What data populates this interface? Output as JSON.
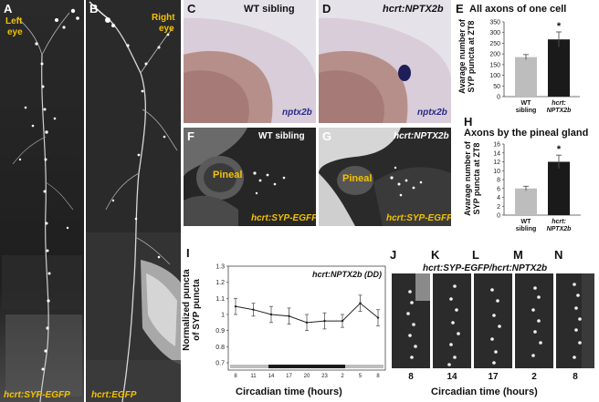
{
  "panels": {
    "A": {
      "letter": "A",
      "top_label": "Left",
      "top_label2": "eye",
      "bottom_label": "hcrt:SYP-EGFP"
    },
    "B": {
      "letter": "B",
      "top_label": "Right",
      "top_label2": "eye",
      "bottom_label": "hcrt:EGFP"
    },
    "C": {
      "letter": "C",
      "title": "WT sibling",
      "probe": "nptx2b"
    },
    "D": {
      "letter": "D",
      "title": "hcrt:NPTX2b",
      "probe": "nptx2b"
    },
    "F": {
      "letter": "F",
      "title": "WT sibling",
      "region": "Pineal",
      "bottom_label": "hcrt:SYP-EGFP"
    },
    "G": {
      "letter": "G",
      "title": "hcrt:NPTX2b",
      "region": "Pineal",
      "bottom_label": "hcrt:SYP-EGFP"
    },
    "J": {
      "letter": "J"
    },
    "K": {
      "letter": "K"
    },
    "L": {
      "letter": "L"
    },
    "M": {
      "letter": "M"
    },
    "N": {
      "letter": "N"
    },
    "JN": {
      "title": "hcrt:SYP-EGFP/hcrt:NPTX2b",
      "timepoints": [
        "8",
        "14",
        "17",
        "2",
        "8"
      ],
      "xlabel": "Circadian time (hours)"
    }
  },
  "chart_data": [
    {
      "panel": "E",
      "type": "bar",
      "title": "All axons of one cell",
      "ylabel_line1": "Avarage  number  of",
      "ylabel_line2": "SYP puncta at ZT8",
      "categories": [
        "WT sibling",
        "hcrt: NPTX2b"
      ],
      "category_lines": [
        [
          "WT",
          "sibling"
        ],
        [
          "hcrt:",
          "NPTX2b"
        ]
      ],
      "values": [
        185,
        268
      ],
      "errors": [
        12,
        35
      ],
      "colors": [
        "#bdbdbd",
        "#1a1a1a"
      ],
      "significance": [
        "",
        "*"
      ],
      "ylim": [
        0,
        350
      ],
      "yticks": [
        "0",
        "50",
        "100",
        "150",
        "200",
        "250",
        "300",
        "350"
      ]
    },
    {
      "panel": "H",
      "type": "bar",
      "title": "Axons by the pineal gland",
      "ylabel_line1": "Avarage  number  of",
      "ylabel_line2": "SYP puncta at ZT8",
      "categories": [
        "WT sibling",
        "hcrt: NPTX2b"
      ],
      "category_lines": [
        [
          "WT",
          "sibling"
        ],
        [
          "hcrt:",
          "NPTX2b"
        ]
      ],
      "values": [
        6.0,
        12.0
      ],
      "errors": [
        0.5,
        1.5
      ],
      "colors": [
        "#bdbdbd",
        "#1a1a1a"
      ],
      "significance": [
        "",
        "*"
      ],
      "ylim": [
        0,
        16
      ],
      "yticks": [
        "0",
        "2",
        "4",
        "6",
        "8",
        "10",
        "12",
        "14",
        "16"
      ]
    },
    {
      "panel": "I",
      "type": "line",
      "annotation": "hcrt:NPTX2b (DD)",
      "ylabel_line1": "Normalized puncta",
      "ylabel_line2": "of SYP puncta",
      "xlabel": "Circadian time (hours)",
      "x": [
        "8",
        "11",
        "14",
        "17",
        "20",
        "23",
        "2",
        "5",
        "8"
      ],
      "values": [
        1.05,
        1.03,
        1.0,
        0.99,
        0.95,
        0.96,
        0.96,
        1.07,
        0.98
      ],
      "errors": [
        0.05,
        0.04,
        0.05,
        0.05,
        0.05,
        0.05,
        0.04,
        0.05,
        0.05
      ],
      "ylim": [
        0.7,
        1.3
      ],
      "yticks": [
        "0.7",
        "0.8",
        "0.9",
        "1",
        "1.1",
        "1.2",
        "1.3"
      ],
      "light_bar": [
        "light",
        "light",
        "dark",
        "dark",
        "dark",
        "dark",
        "light",
        "light"
      ]
    }
  ]
}
